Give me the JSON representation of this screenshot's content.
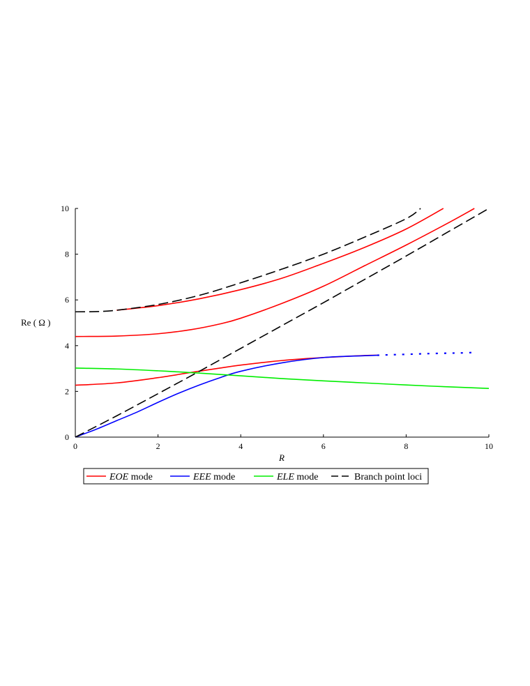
{
  "chart_data": {
    "type": "line",
    "title": "",
    "xlabel": "R",
    "ylabel": "Re ( Ω )",
    "xlim": [
      0,
      10
    ],
    "ylim": [
      0,
      10
    ],
    "xticks": [
      0,
      2,
      4,
      6,
      8,
      10
    ],
    "yticks": [
      0,
      2,
      4,
      6,
      8,
      10
    ],
    "grid": false,
    "legend_position": "bottom",
    "series": [
      {
        "name": "EOE",
        "legend_suffix": " mode",
        "color": "#ff0000",
        "dash": "solid",
        "curves": [
          {
            "x": [
              1.0,
              2,
              3,
              4,
              5,
              6,
              7,
              8,
              8.9
            ],
            "y": [
              5.55,
              5.75,
              6.05,
              6.45,
              6.95,
              7.6,
              8.3,
              9.1,
              10.0
            ]
          },
          {
            "x": [
              0,
              1,
              2,
              2.8,
              3.5,
              4,
              5,
              6,
              7,
              8,
              9,
              9.65
            ],
            "y": [
              4.4,
              4.42,
              4.52,
              4.7,
              4.95,
              5.2,
              5.85,
              6.6,
              7.5,
              8.4,
              9.35,
              10.0
            ]
          },
          {
            "x": [
              0,
              1,
              2,
              2.8,
              3.5,
              4,
              5,
              6,
              7,
              7.3
            ],
            "y": [
              2.27,
              2.37,
              2.6,
              2.83,
              3.02,
              3.15,
              3.35,
              3.48,
              3.57,
              3.58
            ]
          }
        ]
      },
      {
        "name": "EEE",
        "legend_suffix": " mode",
        "color": "#0000ff",
        "dash": "solid",
        "curves": [
          {
            "x": [
              0,
              0.5,
              1,
              1.5,
              2,
              2.5,
              3,
              3.5,
              4,
              5,
              6,
              7,
              7.3
            ],
            "y": [
              0,
              0.34,
              0.72,
              1.1,
              1.52,
              1.92,
              2.28,
              2.6,
              2.88,
              3.25,
              3.48,
              3.56,
              3.58
            ]
          },
          {
            "x": [
              7.3,
              7.6,
              8,
              8.5,
              9,
              9.3,
              9.65
            ],
            "y": [
              3.58,
              3.6,
              3.62,
              3.65,
              3.67,
              3.68,
              3.7
            ],
            "style": "dotted"
          }
        ]
      },
      {
        "name": "ELE",
        "legend_suffix": " mode",
        "color": "#00ee00",
        "dash": "solid",
        "curves": [
          {
            "x": [
              0,
              1,
              2,
              3,
              4,
              5,
              6,
              7,
              8,
              9,
              10
            ],
            "y": [
              3.02,
              2.98,
              2.9,
              2.8,
              2.68,
              2.56,
              2.46,
              2.37,
              2.28,
              2.2,
              2.13
            ]
          }
        ]
      },
      {
        "name": "Branch point loci",
        "legend_suffix": "",
        "color": "#000000",
        "dash": "dashed",
        "curves": [
          {
            "x": [
              0,
              0.5,
              1,
              2,
              3,
              4,
              5,
              6,
              7,
              8,
              8.35
            ],
            "y": [
              5.48,
              5.49,
              5.55,
              5.8,
              6.2,
              6.75,
              7.35,
              8.0,
              8.75,
              9.55,
              10.0
            ]
          },
          {
            "x": [
              0,
              1,
              2,
              3,
              4,
              5,
              6,
              7,
              8,
              9,
              10
            ],
            "y": [
              0,
              0.93,
              1.9,
              2.88,
              3.88,
              4.88,
              5.88,
              6.9,
              7.92,
              8.96,
              10.0
            ]
          }
        ]
      }
    ]
  }
}
